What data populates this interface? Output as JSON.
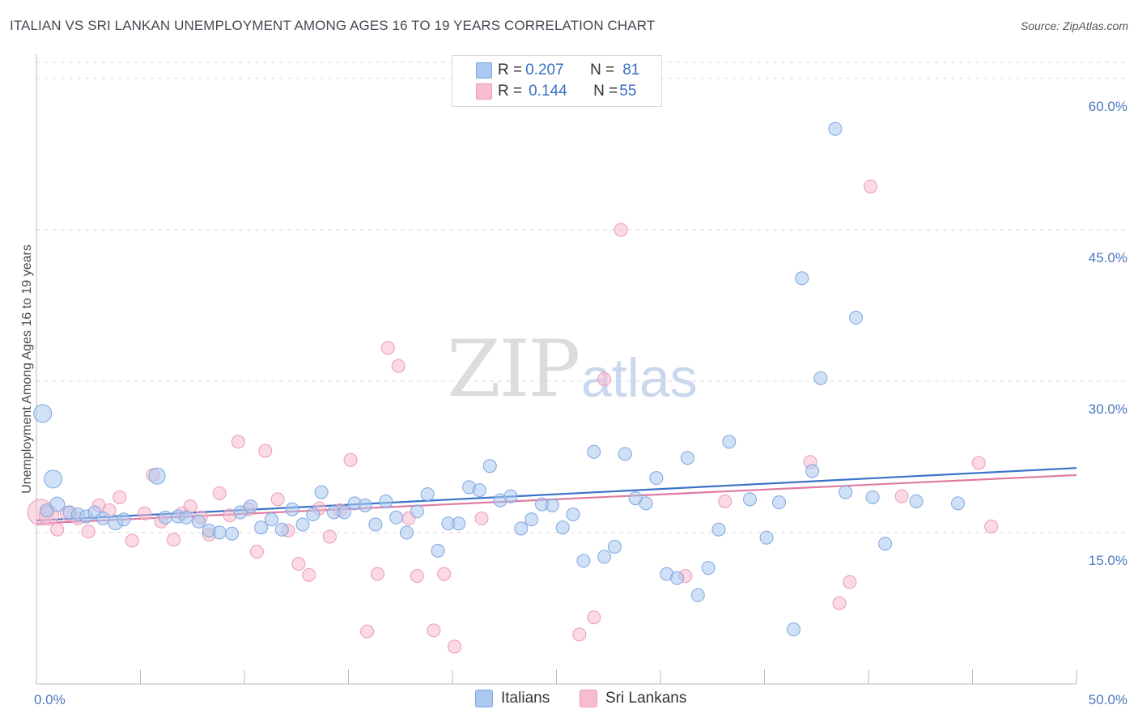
{
  "title": "ITALIAN VS SRI LANKAN UNEMPLOYMENT AMONG AGES 16 TO 19 YEARS CORRELATION CHART",
  "source": "Source: ZipAtlas.com",
  "watermark": {
    "zip": "ZIP",
    "atlas": "atlas"
  },
  "legend": {
    "italians": {
      "r_label": "R = ",
      "r": "0.207",
      "n_label": "N = ",
      "n": "81"
    },
    "srilankans": {
      "r_label": "R = ",
      "r": "0.144",
      "n_label": "N = ",
      "n": "55"
    }
  },
  "colors": {
    "italians_fill": "#aac8f0",
    "italians_stroke": "#7ea6de",
    "italians_line": "#3a72c8",
    "srilankans_fill": "#f8bcd0",
    "srilankans_stroke": "#ec9ab6",
    "srilankans_line": "#e07aa0",
    "tick_text": "#4a78c0",
    "grid": "#d9d9d9"
  },
  "chart_data": {
    "type": "scatter",
    "title": "ITALIAN VS SRI LANKAN UNEMPLOYMENT AMONG AGES 16 TO 19 YEARS CORRELATION CHART",
    "xlabel": "",
    "ylabel": "Unemployment Among Ages 16 to 19 years",
    "xlim": [
      0,
      50
    ],
    "ylim": [
      0,
      62
    ],
    "x_tick_labels": [
      "0.0%",
      "50.0%"
    ],
    "y_ticks": [
      15,
      30,
      45,
      60
    ],
    "y_tick_labels": [
      "15.0%",
      "30.0%",
      "45.0%",
      "60.0%"
    ],
    "grid": "horizontal-dashed",
    "legend_placement": "top-center",
    "series": [
      {
        "name": "Italians",
        "trend": [
          [
            0,
            16.2
          ],
          [
            50,
            21.4
          ]
        ],
        "points": [
          [
            0.3,
            26.8,
            11
          ],
          [
            0.8,
            20.3,
            11
          ],
          [
            1.0,
            17.8,
            9
          ],
          [
            1.6,
            17.0,
            8
          ],
          [
            2.0,
            16.8,
            8
          ],
          [
            2.4,
            16.6,
            8
          ],
          [
            2.8,
            17.0,
            8
          ],
          [
            3.2,
            16.4,
            8
          ],
          [
            3.8,
            16.0,
            9
          ],
          [
            4.2,
            16.3,
            8
          ],
          [
            5.8,
            20.6,
            10
          ],
          [
            6.2,
            16.5,
            8
          ],
          [
            6.8,
            16.6,
            8
          ],
          [
            7.2,
            16.5,
            8
          ],
          [
            7.8,
            16.1,
            8
          ],
          [
            8.3,
            15.2,
            8
          ],
          [
            8.8,
            15.0,
            8
          ],
          [
            9.4,
            14.9,
            8
          ],
          [
            9.8,
            17.0,
            8
          ],
          [
            10.3,
            17.6,
            8
          ],
          [
            10.8,
            15.5,
            8
          ],
          [
            11.3,
            16.3,
            8
          ],
          [
            11.8,
            15.3,
            8
          ],
          [
            12.3,
            17.3,
            8
          ],
          [
            12.8,
            15.8,
            8
          ],
          [
            13.3,
            16.8,
            8
          ],
          [
            13.7,
            19.0,
            8
          ],
          [
            14.3,
            17.0,
            8
          ],
          [
            14.8,
            17.0,
            8
          ],
          [
            15.3,
            17.9,
            8
          ],
          [
            15.8,
            17.7,
            8
          ],
          [
            16.3,
            15.8,
            8
          ],
          [
            16.8,
            18.1,
            8
          ],
          [
            17.3,
            16.5,
            8
          ],
          [
            17.8,
            15.0,
            8
          ],
          [
            18.3,
            17.1,
            8
          ],
          [
            18.8,
            18.8,
            8
          ],
          [
            19.3,
            13.2,
            8
          ],
          [
            19.8,
            15.9,
            8
          ],
          [
            20.3,
            15.9,
            8
          ],
          [
            20.8,
            19.5,
            8
          ],
          [
            21.3,
            19.2,
            8
          ],
          [
            21.8,
            21.6,
            8
          ],
          [
            22.3,
            18.2,
            8
          ],
          [
            22.8,
            18.6,
            8
          ],
          [
            23.3,
            15.4,
            8
          ],
          [
            23.8,
            16.3,
            8
          ],
          [
            24.3,
            17.8,
            8
          ],
          [
            24.8,
            17.7,
            8
          ],
          [
            25.3,
            15.5,
            8
          ],
          [
            25.8,
            16.8,
            8
          ],
          [
            26.3,
            12.2,
            8
          ],
          [
            26.8,
            23.0,
            8
          ],
          [
            27.3,
            12.6,
            8
          ],
          [
            27.8,
            13.6,
            8
          ],
          [
            28.3,
            22.8,
            8
          ],
          [
            28.8,
            18.4,
            8
          ],
          [
            29.3,
            17.9,
            8
          ],
          [
            29.8,
            20.4,
            8
          ],
          [
            30.3,
            10.9,
            8
          ],
          [
            30.8,
            10.5,
            8
          ],
          [
            31.3,
            22.4,
            8
          ],
          [
            31.8,
            8.8,
            8
          ],
          [
            32.3,
            11.5,
            8
          ],
          [
            32.8,
            15.3,
            8
          ],
          [
            33.3,
            24.0,
            8
          ],
          [
            34.3,
            18.3,
            8
          ],
          [
            35.1,
            14.5,
            8
          ],
          [
            35.7,
            18.0,
            8
          ],
          [
            36.4,
            5.4,
            8
          ],
          [
            36.8,
            40.2,
            8
          ],
          [
            37.3,
            21.1,
            8
          ],
          [
            37.7,
            30.3,
            8
          ],
          [
            38.4,
            55.0,
            8
          ],
          [
            38.9,
            19.0,
            8
          ],
          [
            39.4,
            36.3,
            8
          ],
          [
            40.2,
            18.5,
            8
          ],
          [
            40.8,
            13.9,
            8
          ],
          [
            42.3,
            18.1,
            8
          ],
          [
            44.3,
            17.9,
            8
          ],
          [
            0.5,
            17.2,
            8
          ]
        ]
      },
      {
        "name": "Sri Lankans",
        "trend": [
          [
            0,
            15.9
          ],
          [
            50,
            20.7
          ]
        ],
        "points": [
          [
            0.2,
            17.0,
            16
          ],
          [
            0.6,
            16.7,
            12
          ],
          [
            1.0,
            15.3,
            8
          ],
          [
            1.5,
            16.9,
            9
          ],
          [
            2.0,
            16.4,
            8
          ],
          [
            2.5,
            15.1,
            8
          ],
          [
            3.0,
            17.7,
            8
          ],
          [
            3.5,
            17.2,
            8
          ],
          [
            4.0,
            18.5,
            8
          ],
          [
            4.6,
            14.2,
            8
          ],
          [
            5.2,
            16.9,
            8
          ],
          [
            5.6,
            20.7,
            8
          ],
          [
            6.0,
            16.1,
            8
          ],
          [
            6.6,
            14.3,
            8
          ],
          [
            7.0,
            16.9,
            8
          ],
          [
            7.4,
            17.6,
            8
          ],
          [
            7.9,
            16.5,
            8
          ],
          [
            8.3,
            14.8,
            8
          ],
          [
            8.8,
            18.9,
            8
          ],
          [
            9.3,
            16.7,
            8
          ],
          [
            9.7,
            24.0,
            8
          ],
          [
            10.2,
            17.3,
            8
          ],
          [
            10.6,
            13.1,
            8
          ],
          [
            11.0,
            23.1,
            8
          ],
          [
            11.6,
            18.3,
            8
          ],
          [
            12.1,
            15.2,
            8
          ],
          [
            12.6,
            11.9,
            8
          ],
          [
            13.1,
            10.8,
            8
          ],
          [
            13.6,
            17.4,
            8
          ],
          [
            14.1,
            14.6,
            8
          ],
          [
            14.6,
            17.2,
            8
          ],
          [
            15.1,
            22.2,
            8
          ],
          [
            15.9,
            5.2,
            8
          ],
          [
            16.4,
            10.9,
            8
          ],
          [
            16.9,
            33.3,
            8
          ],
          [
            17.4,
            31.5,
            8
          ],
          [
            17.9,
            16.4,
            8
          ],
          [
            18.3,
            10.7,
            8
          ],
          [
            19.1,
            5.3,
            8
          ],
          [
            19.6,
            10.9,
            8
          ],
          [
            20.1,
            3.7,
            8
          ],
          [
            21.4,
            16.4,
            8
          ],
          [
            26.1,
            4.9,
            8
          ],
          [
            26.8,
            6.6,
            8
          ],
          [
            27.3,
            30.2,
            8
          ],
          [
            28.1,
            45.0,
            8
          ],
          [
            31.2,
            10.7,
            8
          ],
          [
            33.1,
            18.1,
            8
          ],
          [
            37.2,
            22.0,
            8
          ],
          [
            38.6,
            8.0,
            8
          ],
          [
            39.1,
            10.1,
            8
          ],
          [
            40.1,
            49.3,
            8
          ],
          [
            41.6,
            18.6,
            8
          ],
          [
            45.3,
            21.9,
            8
          ],
          [
            45.9,
            15.6,
            8
          ]
        ]
      }
    ]
  },
  "bottom_legend": {
    "italians": "Italians",
    "srilankans": "Sri Lankans"
  }
}
